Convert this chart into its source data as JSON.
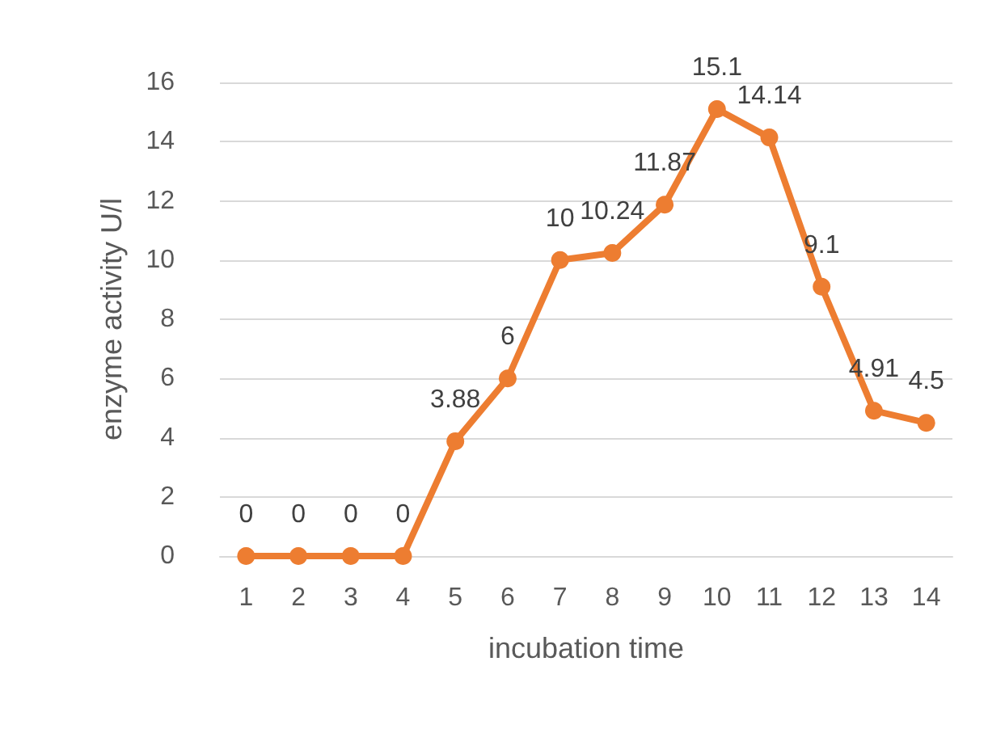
{
  "chart_data": {
    "type": "line",
    "xlabel": "incubation time",
    "ylabel": "enzyme activity U/l",
    "categories": [
      "1",
      "2",
      "3",
      "4",
      "5",
      "6",
      "7",
      "8",
      "9",
      "10",
      "11",
      "12",
      "13",
      "14"
    ],
    "series": [
      {
        "color": "#ed7d31",
        "values": [
          0,
          0,
          0,
          0,
          3.88,
          6,
          10,
          10.24,
          11.87,
          15.1,
          14.14,
          9.1,
          4.91,
          4.5
        ]
      }
    ],
    "ylim": [
      0,
      16
    ],
    "yticks": [
      0,
      2,
      4,
      6,
      8,
      10,
      12,
      14,
      16
    ],
    "grid": "y",
    "marker": "circle",
    "line_style": "solid",
    "data_labels": true
  }
}
